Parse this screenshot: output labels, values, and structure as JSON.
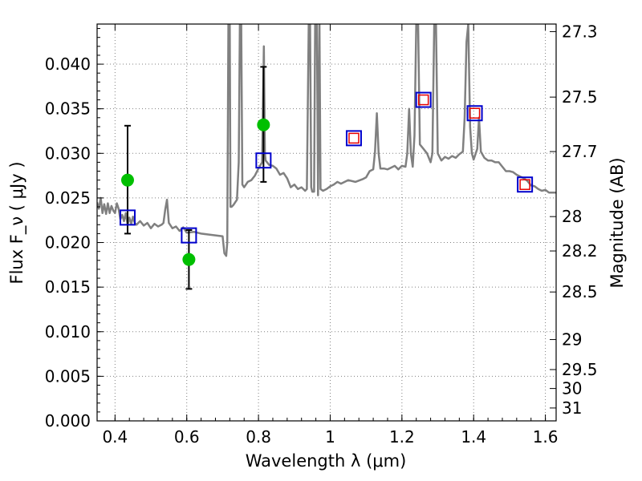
{
  "chart_data": {
    "type": "line",
    "xlabel": "Wavelength  λ (μm)",
    "ylabel": "Flux  F_ν  ( μJy )",
    "ylabel_right": "Magnitude (AB)",
    "xlim": [
      0.35,
      1.63
    ],
    "ylim": [
      0.0,
      0.0445
    ],
    "grid": true,
    "x_ticks": [
      {
        "v": 0.4,
        "label": "0.4"
      },
      {
        "v": 0.6,
        "label": "0.6"
      },
      {
        "v": 0.8,
        "label": "0.8"
      },
      {
        "v": 1.0,
        "label": "1"
      },
      {
        "v": 1.2,
        "label": "1.2"
      },
      {
        "v": 1.4,
        "label": "1.4"
      },
      {
        "v": 1.6,
        "label": "1.6"
      }
    ],
    "y_ticks": [
      {
        "v": 0.0,
        "label": "0.000"
      },
      {
        "v": 0.005,
        "label": "0.005"
      },
      {
        "v": 0.01,
        "label": "0.010"
      },
      {
        "v": 0.015,
        "label": "0.015"
      },
      {
        "v": 0.02,
        "label": "0.020"
      },
      {
        "v": 0.025,
        "label": "0.025"
      },
      {
        "v": 0.03,
        "label": "0.030"
      },
      {
        "v": 0.035,
        "label": "0.035"
      },
      {
        "v": 0.04,
        "label": "0.040"
      }
    ],
    "mag_ticks": [
      {
        "label": "27.3"
      },
      {
        "label": "27.5"
      },
      {
        "label": "27.7"
      },
      {
        "label": "28"
      },
      {
        "label": "28.2"
      },
      {
        "label": "28.5"
      },
      {
        "label": "29"
      },
      {
        "label": "29.5"
      },
      {
        "label": "30"
      },
      {
        "label": "31"
      }
    ],
    "colors": {
      "template": "#808080",
      "observed": "#00bf00",
      "model_box": "#0000cc",
      "model_inner": "#e60000",
      "errorbar": "#000000",
      "grid": "#808080"
    },
    "template_spectrum": [
      [
        0.35,
        0.0245
      ],
      [
        0.355,
        0.0238
      ],
      [
        0.36,
        0.025
      ],
      [
        0.365,
        0.0233
      ],
      [
        0.37,
        0.0243
      ],
      [
        0.375,
        0.0232
      ],
      [
        0.38,
        0.0244
      ],
      [
        0.385,
        0.0233
      ],
      [
        0.39,
        0.0241
      ],
      [
        0.395,
        0.0236
      ],
      [
        0.4,
        0.0233
      ],
      [
        0.405,
        0.0244
      ],
      [
        0.41,
        0.0238
      ],
      [
        0.415,
        0.0226
      ],
      [
        0.42,
        0.0231
      ],
      [
        0.425,
        0.0224
      ],
      [
        0.43,
        0.0233
      ],
      [
        0.435,
        0.022
      ],
      [
        0.44,
        0.0228
      ],
      [
        0.445,
        0.0221
      ],
      [
        0.45,
        0.0229
      ],
      [
        0.455,
        0.0222
      ],
      [
        0.46,
        0.022
      ],
      [
        0.47,
        0.0224
      ],
      [
        0.48,
        0.0219
      ],
      [
        0.49,
        0.0222
      ],
      [
        0.5,
        0.0216
      ],
      [
        0.51,
        0.0221
      ],
      [
        0.52,
        0.0218
      ],
      [
        0.53,
        0.022
      ],
      [
        0.535,
        0.0222
      ],
      [
        0.54,
        0.0237
      ],
      [
        0.545,
        0.0248
      ],
      [
        0.55,
        0.0222
      ],
      [
        0.56,
        0.0216
      ],
      [
        0.57,
        0.0218
      ],
      [
        0.58,
        0.0213
      ],
      [
        0.59,
        0.0217
      ],
      [
        0.6,
        0.0211
      ],
      [
        0.62,
        0.0212
      ],
      [
        0.64,
        0.021
      ],
      [
        0.66,
        0.0209
      ],
      [
        0.68,
        0.0208
      ],
      [
        0.7,
        0.0207
      ],
      [
        0.705,
        0.0188
      ],
      [
        0.71,
        0.0185
      ],
      [
        0.713,
        0.02
      ],
      [
        0.716,
        0.0445
      ],
      [
        0.72,
        0.0445
      ],
      [
        0.722,
        0.024
      ],
      [
        0.725,
        0.024
      ],
      [
        0.73,
        0.0242
      ],
      [
        0.74,
        0.0248
      ],
      [
        0.745,
        0.029
      ],
      [
        0.748,
        0.0445
      ],
      [
        0.752,
        0.0445
      ],
      [
        0.755,
        0.0265
      ],
      [
        0.76,
        0.0262
      ],
      [
        0.77,
        0.0268
      ],
      [
        0.78,
        0.027
      ],
      [
        0.79,
        0.0275
      ],
      [
        0.8,
        0.0283
      ],
      [
        0.81,
        0.029
      ],
      [
        0.815,
        0.042
      ],
      [
        0.818,
        0.03
      ],
      [
        0.82,
        0.0292
      ],
      [
        0.83,
        0.0287
      ],
      [
        0.84,
        0.0286
      ],
      [
        0.85,
        0.0283
      ],
      [
        0.86,
        0.0276
      ],
      [
        0.87,
        0.0278
      ],
      [
        0.88,
        0.0272
      ],
      [
        0.89,
        0.0262
      ],
      [
        0.9,
        0.0265
      ],
      [
        0.91,
        0.026
      ],
      [
        0.92,
        0.0262
      ],
      [
        0.93,
        0.0258
      ],
      [
        0.935,
        0.026
      ],
      [
        0.94,
        0.0445
      ],
      [
        0.944,
        0.0445
      ],
      [
        0.947,
        0.0262
      ],
      [
        0.95,
        0.0257
      ],
      [
        0.955,
        0.0257
      ],
      [
        0.958,
        0.0445
      ],
      [
        0.963,
        0.0445
      ],
      [
        0.966,
        0.0253
      ],
      [
        0.97,
        0.0445
      ],
      [
        0.973,
        0.026
      ],
      [
        0.98,
        0.0258
      ],
      [
        0.99,
        0.026
      ],
      [
        1.0,
        0.0263
      ],
      [
        1.01,
        0.0265
      ],
      [
        1.02,
        0.0268
      ],
      [
        1.03,
        0.0266
      ],
      [
        1.05,
        0.027
      ],
      [
        1.07,
        0.0268
      ],
      [
        1.09,
        0.0271
      ],
      [
        1.1,
        0.0273
      ],
      [
        1.11,
        0.028
      ],
      [
        1.12,
        0.0282
      ],
      [
        1.125,
        0.0302
      ],
      [
        1.13,
        0.0345
      ],
      [
        1.135,
        0.03
      ],
      [
        1.14,
        0.0283
      ],
      [
        1.15,
        0.0283
      ],
      [
        1.16,
        0.0282
      ],
      [
        1.17,
        0.0284
      ],
      [
        1.18,
        0.0286
      ],
      [
        1.19,
        0.0282
      ],
      [
        1.2,
        0.0286
      ],
      [
        1.21,
        0.0285
      ],
      [
        1.215,
        0.03
      ],
      [
        1.22,
        0.035
      ],
      [
        1.225,
        0.03
      ],
      [
        1.23,
        0.0285
      ],
      [
        1.235,
        0.032
      ],
      [
        1.24,
        0.0445
      ],
      [
        1.245,
        0.0445
      ],
      [
        1.25,
        0.031
      ],
      [
        1.26,
        0.0305
      ],
      [
        1.27,
        0.03
      ],
      [
        1.28,
        0.029
      ],
      [
        1.285,
        0.03
      ],
      [
        1.29,
        0.0445
      ],
      [
        1.295,
        0.0445
      ],
      [
        1.3,
        0.03
      ],
      [
        1.31,
        0.0292
      ],
      [
        1.32,
        0.0296
      ],
      [
        1.33,
        0.0294
      ],
      [
        1.34,
        0.0297
      ],
      [
        1.35,
        0.0295
      ],
      [
        1.36,
        0.0299
      ],
      [
        1.37,
        0.0302
      ],
      [
        1.375,
        0.034
      ],
      [
        1.38,
        0.0425
      ],
      [
        1.385,
        0.0445
      ],
      [
        1.39,
        0.033
      ],
      [
        1.395,
        0.03
      ],
      [
        1.4,
        0.0293
      ],
      [
        1.41,
        0.0305
      ],
      [
        1.415,
        0.034
      ],
      [
        1.42,
        0.0302
      ],
      [
        1.43,
        0.0295
      ],
      [
        1.44,
        0.0292
      ],
      [
        1.45,
        0.0292
      ],
      [
        1.46,
        0.029
      ],
      [
        1.47,
        0.029
      ],
      [
        1.48,
        0.0285
      ],
      [
        1.49,
        0.028
      ],
      [
        1.5,
        0.028
      ],
      [
        1.51,
        0.0279
      ],
      [
        1.52,
        0.0276
      ],
      [
        1.53,
        0.0274
      ],
      [
        1.54,
        0.0272
      ],
      [
        1.55,
        0.0269
      ],
      [
        1.56,
        0.0264
      ],
      [
        1.57,
        0.0263
      ],
      [
        1.58,
        0.026
      ],
      [
        1.59,
        0.0258
      ],
      [
        1.6,
        0.0259
      ],
      [
        1.61,
        0.0256
      ],
      [
        1.62,
        0.0256
      ],
      [
        1.63,
        0.0256
      ]
    ],
    "observed": [
      {
        "x": 0.435,
        "y": 0.027,
        "err": [
          0.021,
          0.0331
        ]
      },
      {
        "x": 0.606,
        "y": 0.0181,
        "err": [
          0.0148,
          0.0214
        ]
      },
      {
        "x": 0.814,
        "y": 0.0332,
        "err": [
          0.0268,
          0.0397
        ]
      }
    ],
    "model_photometry": [
      {
        "x": 0.435,
        "y": 0.0228,
        "inner": false
      },
      {
        "x": 0.606,
        "y": 0.0208,
        "inner": false
      },
      {
        "x": 0.814,
        "y": 0.0292,
        "inner": false
      },
      {
        "x": 1.066,
        "y": 0.0317,
        "inner": true
      },
      {
        "x": 1.26,
        "y": 0.036,
        "inner": true
      },
      {
        "x": 1.403,
        "y": 0.0345,
        "inner": true
      },
      {
        "x": 1.543,
        "y": 0.0265,
        "inner": true
      }
    ]
  }
}
